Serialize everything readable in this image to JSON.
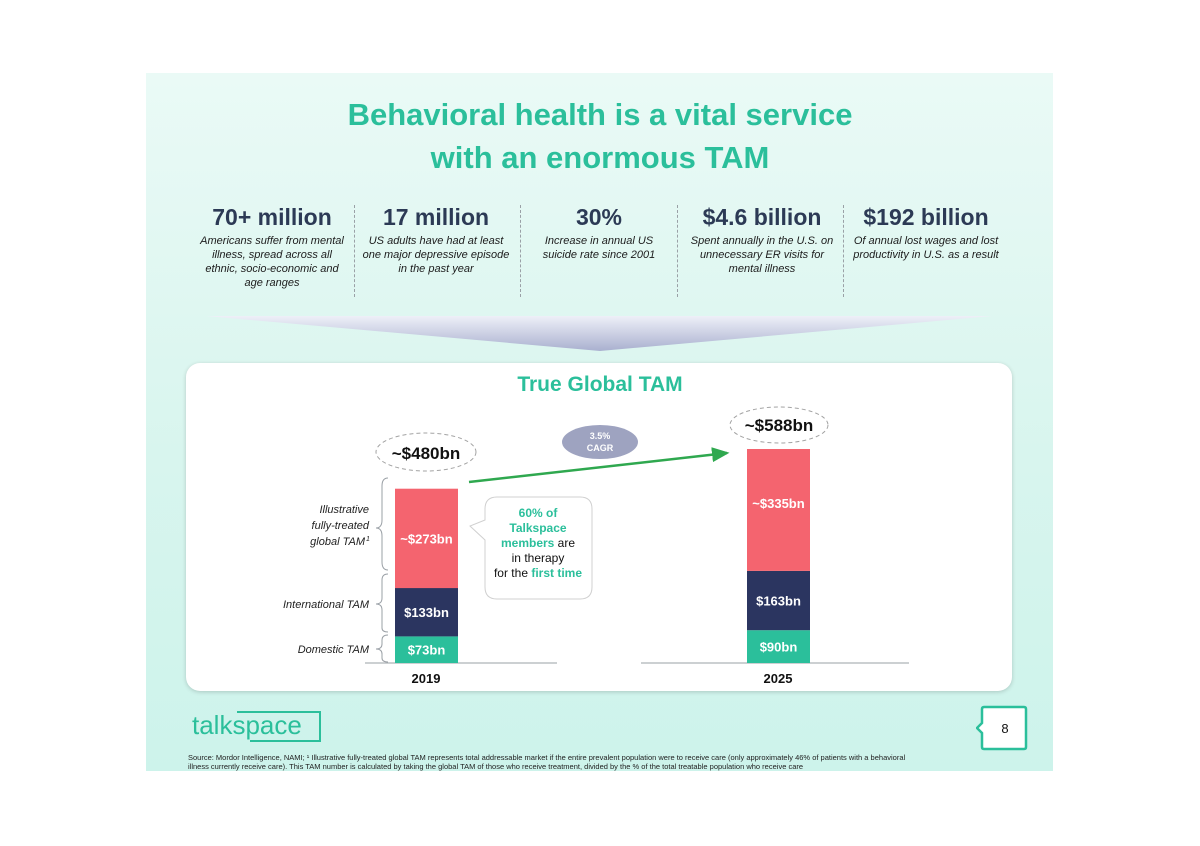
{
  "slide": {
    "title_line1": "Behavioral health is a vital service",
    "title_line2": "with an enormous TAM",
    "page_number": "8",
    "logo_text": "talkspace",
    "footnote_line1": "Source: Mordor Intelligence, NAMI; ¹ Illustrative fully-treated global TAM represents total addressable market if the entire prevalent population were to receive care (only approximately 46% of patients with a behavioral",
    "footnote_line2": "illness currently receive care). This TAM number is calculated by taking the global TAM of those who receive treatment, divided by the % of the total treatable population who receive care"
  },
  "stats": [
    {
      "value": "70+ million",
      "desc": "Americans suffer from mental illness, spread across all ethnic, socio-economic and age ranges"
    },
    {
      "value": "17 million",
      "desc": "US adults have had at least one major depressive episode in the past year"
    },
    {
      "value": "30%",
      "desc": "Increase in annual US suicide rate since 2001"
    },
    {
      "value": "$4.6 billion",
      "desc": "Spent annually in the U.S. on unnecessary ER visits for mental illness"
    },
    {
      "value": "$192 billion",
      "desc": "Of annual lost wages and lost productivity in U.S. as a result"
    }
  ],
  "chart_data": {
    "type": "bar",
    "stacked": true,
    "title": "True Global TAM",
    "categories": [
      "2019",
      "2025"
    ],
    "totals": [
      "~$480bn",
      "~$588bn"
    ],
    "series": [
      {
        "name": "Domestic TAM",
        "values": [
          73,
          90
        ],
        "labels": [
          "$73bn",
          "$90bn"
        ],
        "color": "#2bbf9b"
      },
      {
        "name": "International TAM",
        "values": [
          133,
          163
        ],
        "labels": [
          "$133bn",
          "$163bn"
        ],
        "color": "#2b3560"
      },
      {
        "name": "Illustrative fully-treated global TAM¹",
        "values": [
          273,
          335
        ],
        "labels": [
          "~$273bn",
          "~$335bn"
        ],
        "color": "#f4646f"
      }
    ],
    "series_labels": {
      "fully_treated_line1": "Illustrative",
      "fully_treated_line2": "fully-treated",
      "fully_treated_line3": "global TAM",
      "fully_treated_sup": "1",
      "international": "International TAM",
      "domestic": "Domestic TAM"
    },
    "cagr_line1": "3.5%",
    "cagr_line2": "CAGR",
    "callout": {
      "line1": "60% of",
      "line2": "Talkspace",
      "line3a": "members",
      "line3b": " are",
      "line4": "in therapy",
      "line5a": "for the ",
      "line5b": "first time"
    },
    "colors": {
      "accent": "#2bbf9b",
      "navy": "#2b3560",
      "coral": "#f4646f",
      "cagr_bubble": "#9ea3c0",
      "arrow": "#2fa84f"
    }
  }
}
